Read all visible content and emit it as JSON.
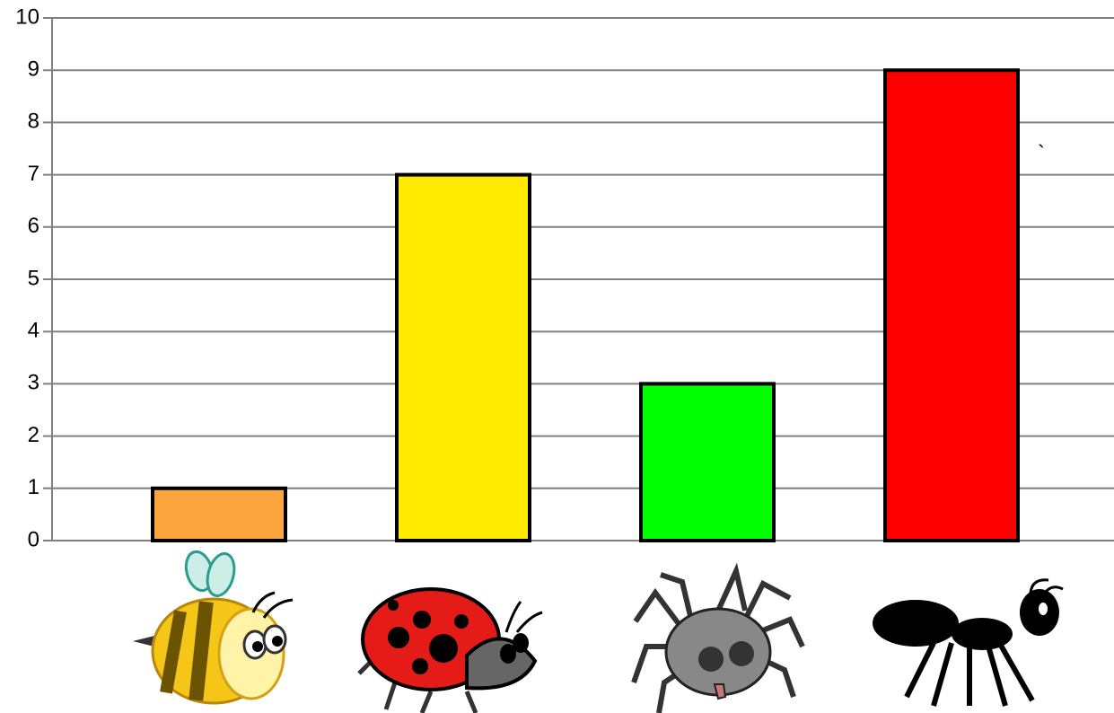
{
  "chart_data": {
    "type": "bar",
    "categories": [
      null,
      null,
      null,
      null
    ],
    "values": [
      1,
      7,
      3,
      9
    ],
    "colors": [
      "#fba53e",
      "#ffeb00",
      "#00ff00",
      "#ff0000"
    ],
    "ylim": [
      0,
      10
    ],
    "yticks": [
      0,
      1,
      2,
      3,
      4,
      5,
      6,
      7,
      8,
      9,
      10
    ],
    "grid": true,
    "annotation": "`"
  }
}
